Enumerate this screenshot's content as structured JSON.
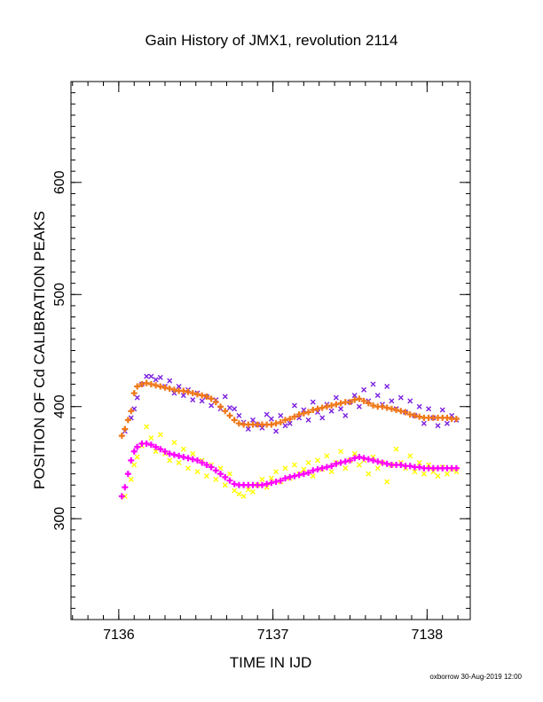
{
  "chart_data": {
    "type": "scatter",
    "title": "Gain History of JMX1, revolution 2114",
    "xlabel": "TIME IN IJD",
    "ylabel": "POSITION OF Cd CALIBRATION PEAKS",
    "xlim": [
      7135.69,
      7138.28
    ],
    "ylim": [
      210,
      690
    ],
    "xticks": [
      7136,
      7137,
      7138
    ],
    "yticks": [
      300,
      400,
      500,
      600
    ],
    "grid": false,
    "legend": "none",
    "series": [
      {
        "marker": "x",
        "color": "#7b1fe0",
        "points": [
          [
            7136.04,
            378
          ],
          [
            7136.08,
            390
          ],
          [
            7136.1,
            398
          ],
          [
            7136.12,
            408
          ],
          [
            7136.15,
            420
          ],
          [
            7136.18,
            427
          ],
          [
            7136.21,
            427
          ],
          [
            7136.24,
            424
          ],
          [
            7136.27,
            426
          ],
          [
            7136.3,
            418
          ],
          [
            7136.33,
            423
          ],
          [
            7136.36,
            412
          ],
          [
            7136.39,
            418
          ],
          [
            7136.42,
            410
          ],
          [
            7136.45,
            415
          ],
          [
            7136.48,
            406
          ],
          [
            7136.51,
            412
          ],
          [
            7136.54,
            405
          ],
          [
            7136.57,
            409
          ],
          [
            7136.6,
            401
          ],
          [
            7136.63,
            406
          ],
          [
            7136.66,
            398
          ],
          [
            7136.69,
            409
          ],
          [
            7136.72,
            399
          ],
          [
            7136.75,
            398
          ],
          [
            7136.78,
            392
          ],
          [
            7136.81,
            386
          ],
          [
            7136.84,
            380
          ],
          [
            7136.87,
            388
          ],
          [
            7136.9,
            384
          ],
          [
            7136.93,
            381
          ],
          [
            7136.96,
            393
          ],
          [
            7136.99,
            389
          ],
          [
            7137.02,
            378
          ],
          [
            7137.05,
            392
          ],
          [
            7137.08,
            383
          ],
          [
            7137.11,
            385
          ],
          [
            7137.14,
            401
          ],
          [
            7137.17,
            390
          ],
          [
            7137.2,
            397
          ],
          [
            7137.23,
            388
          ],
          [
            7137.26,
            404
          ],
          [
            7137.29,
            395
          ],
          [
            7137.32,
            390
          ],
          [
            7137.35,
            402
          ],
          [
            7137.38,
            396
          ],
          [
            7137.41,
            408
          ],
          [
            7137.44,
            398
          ],
          [
            7137.47,
            392
          ],
          [
            7137.5,
            404
          ],
          [
            7137.53,
            410
          ],
          [
            7137.56,
            400
          ],
          [
            7137.59,
            415
          ],
          [
            7137.62,
            405
          ],
          [
            7137.65,
            420
          ],
          [
            7137.68,
            410
          ],
          [
            7137.71,
            402
          ],
          [
            7137.74,
            418
          ],
          [
            7137.77,
            405
          ],
          [
            7137.8,
            398
          ],
          [
            7137.83,
            408
          ],
          [
            7137.86,
            395
          ],
          [
            7137.89,
            405
          ],
          [
            7137.92,
            392
          ],
          [
            7137.95,
            400
          ],
          [
            7137.98,
            385
          ],
          [
            7138.01,
            398
          ],
          [
            7138.04,
            390
          ],
          [
            7138.07,
            383
          ],
          [
            7138.1,
            397
          ],
          [
            7138.13,
            385
          ],
          [
            7138.16,
            392
          ],
          [
            7138.19,
            388
          ]
        ]
      },
      {
        "marker": "x",
        "color": "#ffff00",
        "points": [
          [
            7136.04,
            320
          ],
          [
            7136.08,
            335
          ],
          [
            7136.1,
            348
          ],
          [
            7136.12,
            355
          ],
          [
            7136.15,
            365
          ],
          [
            7136.18,
            382
          ],
          [
            7136.21,
            372
          ],
          [
            7136.24,
            360
          ],
          [
            7136.27,
            375
          ],
          [
            7136.3,
            358
          ],
          [
            7136.33,
            352
          ],
          [
            7136.36,
            368
          ],
          [
            7136.39,
            350
          ],
          [
            7136.42,
            362
          ],
          [
            7136.45,
            345
          ],
          [
            7136.48,
            358
          ],
          [
            7136.51,
            342
          ],
          [
            7136.54,
            352
          ],
          [
            7136.57,
            338
          ],
          [
            7136.6,
            348
          ],
          [
            7136.63,
            335
          ],
          [
            7136.66,
            345
          ],
          [
            7136.69,
            330
          ],
          [
            7136.72,
            340
          ],
          [
            7136.75,
            325
          ],
          [
            7136.78,
            322
          ],
          [
            7136.81,
            320
          ],
          [
            7136.84,
            326
          ],
          [
            7136.87,
            324
          ],
          [
            7136.9,
            330
          ],
          [
            7136.93,
            335
          ],
          [
            7136.96,
            328
          ],
          [
            7136.99,
            336
          ],
          [
            7137.02,
            342
          ],
          [
            7137.05,
            333
          ],
          [
            7137.08,
            345
          ],
          [
            7137.11,
            336
          ],
          [
            7137.14,
            348
          ],
          [
            7137.17,
            340
          ],
          [
            7137.2,
            344
          ],
          [
            7137.23,
            350
          ],
          [
            7137.26,
            338
          ],
          [
            7137.29,
            352
          ],
          [
            7137.32,
            344
          ],
          [
            7137.35,
            356
          ],
          [
            7137.38,
            342
          ],
          [
            7137.41,
            350
          ],
          [
            7137.44,
            360
          ],
          [
            7137.47,
            345
          ],
          [
            7137.5,
            352
          ],
          [
            7137.53,
            358
          ],
          [
            7137.56,
            348
          ],
          [
            7137.59,
            352
          ],
          [
            7137.62,
            340
          ],
          [
            7137.65,
            355
          ],
          [
            7137.68,
            345
          ],
          [
            7137.71,
            350
          ],
          [
            7137.74,
            333
          ],
          [
            7137.77,
            348
          ],
          [
            7137.8,
            362
          ],
          [
            7137.83,
            350
          ],
          [
            7137.86,
            345
          ],
          [
            7137.89,
            356
          ],
          [
            7137.92,
            342
          ],
          [
            7137.95,
            350
          ],
          [
            7137.98,
            340
          ],
          [
            7138.01,
            348
          ],
          [
            7138.04,
            342
          ],
          [
            7138.07,
            338
          ],
          [
            7138.1,
            346
          ],
          [
            7138.13,
            340
          ],
          [
            7138.16,
            344
          ],
          [
            7138.19,
            342
          ]
        ]
      },
      {
        "marker": "+",
        "color": "#f07818",
        "points": [
          [
            7136.02,
            374
          ],
          [
            7136.04,
            380
          ],
          [
            7136.06,
            388
          ],
          [
            7136.08,
            396
          ],
          [
            7136.1,
            412
          ],
          [
            7136.12,
            418
          ],
          [
            7136.15,
            420
          ],
          [
            7136.18,
            421
          ],
          [
            7136.21,
            420
          ],
          [
            7136.24,
            419
          ],
          [
            7136.27,
            418
          ],
          [
            7136.3,
            417
          ],
          [
            7136.33,
            416
          ],
          [
            7136.36,
            415
          ],
          [
            7136.39,
            414
          ],
          [
            7136.42,
            414
          ],
          [
            7136.45,
            413
          ],
          [
            7136.48,
            412
          ],
          [
            7136.51,
            411
          ],
          [
            7136.54,
            410
          ],
          [
            7136.57,
            409
          ],
          [
            7136.6,
            407
          ],
          [
            7136.63,
            404
          ],
          [
            7136.66,
            400
          ],
          [
            7136.69,
            396
          ],
          [
            7136.72,
            392
          ],
          [
            7136.75,
            388
          ],
          [
            7136.78,
            385
          ],
          [
            7136.81,
            384
          ],
          [
            7136.84,
            384
          ],
          [
            7136.87,
            384
          ],
          [
            7136.9,
            384
          ],
          [
            7136.93,
            384
          ],
          [
            7136.96,
            384
          ],
          [
            7136.99,
            384
          ],
          [
            7137.02,
            385
          ],
          [
            7137.05,
            386
          ],
          [
            7137.08,
            388
          ],
          [
            7137.11,
            389
          ],
          [
            7137.14,
            391
          ],
          [
            7137.17,
            393
          ],
          [
            7137.2,
            394
          ],
          [
            7137.23,
            395
          ],
          [
            7137.26,
            397
          ],
          [
            7137.29,
            398
          ],
          [
            7137.32,
            399
          ],
          [
            7137.35,
            400
          ],
          [
            7137.38,
            401
          ],
          [
            7137.41,
            402
          ],
          [
            7137.44,
            403
          ],
          [
            7137.47,
            404
          ],
          [
            7137.5,
            404
          ],
          [
            7137.53,
            406
          ],
          [
            7137.56,
            407
          ],
          [
            7137.59,
            405
          ],
          [
            7137.62,
            403
          ],
          [
            7137.65,
            401
          ],
          [
            7137.68,
            400
          ],
          [
            7137.71,
            400
          ],
          [
            7137.74,
            399
          ],
          [
            7137.77,
            398
          ],
          [
            7137.8,
            397
          ],
          [
            7137.83,
            396
          ],
          [
            7137.86,
            395
          ],
          [
            7137.89,
            393
          ],
          [
            7137.92,
            392
          ],
          [
            7137.95,
            391
          ],
          [
            7137.98,
            390
          ],
          [
            7138.01,
            390
          ],
          [
            7138.04,
            390
          ],
          [
            7138.07,
            390
          ],
          [
            7138.1,
            390
          ],
          [
            7138.13,
            390
          ],
          [
            7138.16,
            389
          ],
          [
            7138.19,
            389
          ]
        ]
      },
      {
        "marker": "+",
        "color": "#ff00ff",
        "points": [
          [
            7136.02,
            320
          ],
          [
            7136.04,
            328
          ],
          [
            7136.06,
            340
          ],
          [
            7136.08,
            352
          ],
          [
            7136.1,
            360
          ],
          [
            7136.12,
            364
          ],
          [
            7136.15,
            367
          ],
          [
            7136.18,
            367
          ],
          [
            7136.21,
            366
          ],
          [
            7136.24,
            364
          ],
          [
            7136.27,
            362
          ],
          [
            7136.3,
            360
          ],
          [
            7136.33,
            358
          ],
          [
            7136.36,
            357
          ],
          [
            7136.39,
            356
          ],
          [
            7136.42,
            355
          ],
          [
            7136.45,
            354
          ],
          [
            7136.48,
            353
          ],
          [
            7136.51,
            352
          ],
          [
            7136.54,
            350
          ],
          [
            7136.57,
            348
          ],
          [
            7136.6,
            346
          ],
          [
            7136.63,
            343
          ],
          [
            7136.66,
            340
          ],
          [
            7136.69,
            337
          ],
          [
            7136.72,
            334
          ],
          [
            7136.75,
            331
          ],
          [
            7136.78,
            330
          ],
          [
            7136.81,
            330
          ],
          [
            7136.84,
            330
          ],
          [
            7136.87,
            330
          ],
          [
            7136.9,
            330
          ],
          [
            7136.93,
            330
          ],
          [
            7136.96,
            331
          ],
          [
            7136.99,
            332
          ],
          [
            7137.02,
            333
          ],
          [
            7137.05,
            334
          ],
          [
            7137.08,
            336
          ],
          [
            7137.11,
            337
          ],
          [
            7137.14,
            338
          ],
          [
            7137.17,
            339
          ],
          [
            7137.2,
            340
          ],
          [
            7137.23,
            341
          ],
          [
            7137.26,
            343
          ],
          [
            7137.29,
            344
          ],
          [
            7137.32,
            345
          ],
          [
            7137.35,
            346
          ],
          [
            7137.38,
            347
          ],
          [
            7137.41,
            349
          ],
          [
            7137.44,
            350
          ],
          [
            7137.47,
            351
          ],
          [
            7137.5,
            352
          ],
          [
            7137.53,
            354
          ],
          [
            7137.56,
            355
          ],
          [
            7137.59,
            354
          ],
          [
            7137.62,
            353
          ],
          [
            7137.65,
            352
          ],
          [
            7137.68,
            351
          ],
          [
            7137.71,
            350
          ],
          [
            7137.74,
            349
          ],
          [
            7137.77,
            348
          ],
          [
            7137.8,
            348
          ],
          [
            7137.83,
            348
          ],
          [
            7137.86,
            347
          ],
          [
            7137.89,
            347
          ],
          [
            7137.92,
            346
          ],
          [
            7137.95,
            346
          ],
          [
            7137.98,
            345
          ],
          [
            7138.01,
            345
          ],
          [
            7138.04,
            345
          ],
          [
            7138.07,
            345
          ],
          [
            7138.1,
            345
          ],
          [
            7138.13,
            345
          ],
          [
            7138.16,
            345
          ],
          [
            7138.19,
            345
          ]
        ]
      }
    ]
  },
  "footer": {
    "credit": "oxborrow 30-Aug-2019 12:00"
  }
}
